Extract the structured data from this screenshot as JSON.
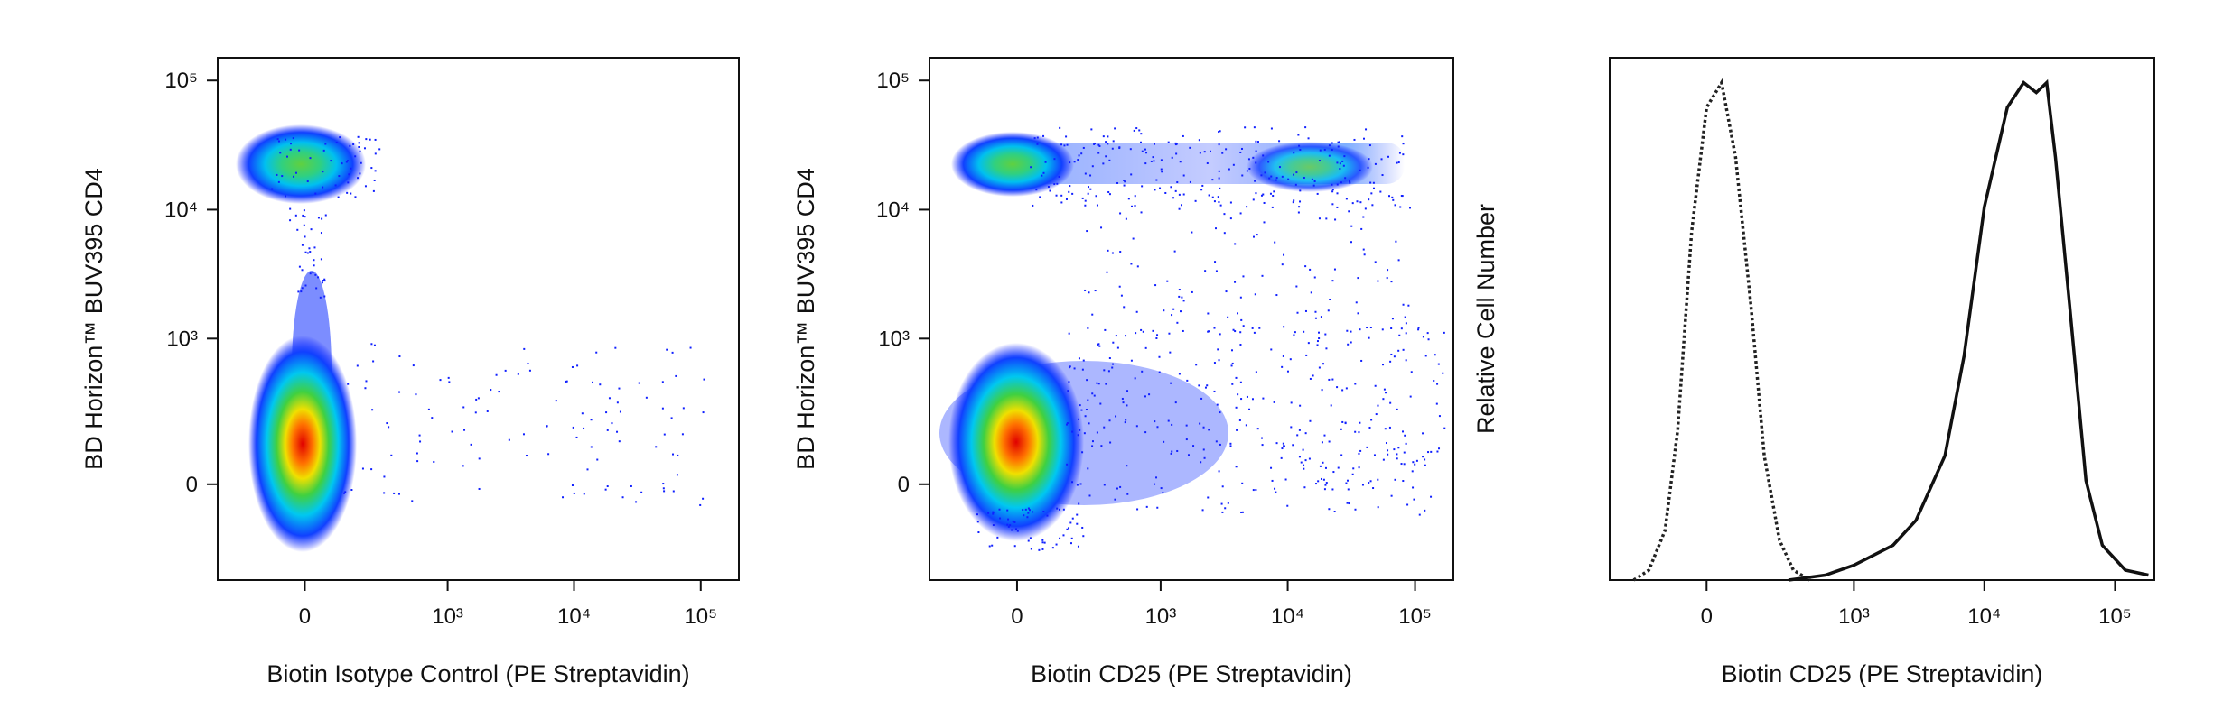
{
  "chart_data": [
    {
      "type": "density",
      "x_label": "Biotin Isotype Control (PE Streptavidin)",
      "y_label": "BD Horizon™ BUV395 CD4",
      "scale": "biexponential",
      "xlim": [
        -350,
        200000
      ],
      "ylim": [
        -400,
        150000
      ],
      "xticks": [
        0,
        {
          "value": 1000,
          "label": "10³"
        },
        {
          "value": 10000,
          "label": "10⁴"
        },
        {
          "value": 100000,
          "label": "10⁵"
        }
      ],
      "yticks": [
        0,
        {
          "value": 1000,
          "label": "10³"
        },
        {
          "value": 10000,
          "label": "10⁴"
        },
        {
          "value": 100000,
          "label": "10⁵"
        }
      ]
    },
    {
      "type": "density",
      "x_label": "Biotin CD25 (PE Streptavidin)",
      "y_label": "BD Horizon™ BUV395 CD4",
      "scale": "biexponential",
      "xlim": [
        -350,
        200000
      ],
      "ylim": [
        -400,
        150000
      ],
      "xticks": [
        0,
        {
          "value": 1000,
          "label": "10³"
        },
        {
          "value": 10000,
          "label": "10⁴"
        },
        {
          "value": 100000,
          "label": "10⁵"
        }
      ],
      "yticks": [
        0,
        {
          "value": 1000,
          "label": "10³"
        },
        {
          "value": 10000,
          "label": "10⁴"
        },
        {
          "value": 100000,
          "label": "10⁵"
        }
      ]
    },
    {
      "type": "line",
      "x_label": "Biotin CD25 (PE Streptavidin)",
      "y_label": "Relative Cell Number",
      "scale": "biexponential",
      "xlim": [
        -400,
        200000
      ],
      "ylim": [
        0,
        105
      ],
      "xticks": [
        0,
        {
          "value": 1000,
          "label": "10³"
        },
        {
          "value": 10000,
          "label": "10⁴"
        },
        {
          "value": 100000,
          "label": "10⁵"
        }
      ],
      "series": [
        {
          "color": "#222222",
          "dash": "dotted",
          "x": [
            -250,
            -180,
            -120,
            -80,
            -40,
            0,
            40,
            80,
            130,
            180,
            250,
            330,
            450
          ],
          "values": [
            0,
            2,
            10,
            30,
            70,
            95,
            100,
            85,
            55,
            25,
            8,
            2,
            0
          ]
        },
        {
          "color": "#111111",
          "dash": "solid",
          "x": [
            300,
            600,
            1000,
            2000,
            3000,
            5000,
            7000,
            10000,
            15000,
            20000,
            25000,
            30000,
            35000,
            45000,
            60000,
            80000,
            120000,
            180000
          ],
          "values": [
            0,
            1,
            3,
            7,
            12,
            25,
            45,
            75,
            95,
            100,
            98,
            100,
            85,
            55,
            20,
            7,
            2,
            1
          ]
        }
      ]
    }
  ]
}
